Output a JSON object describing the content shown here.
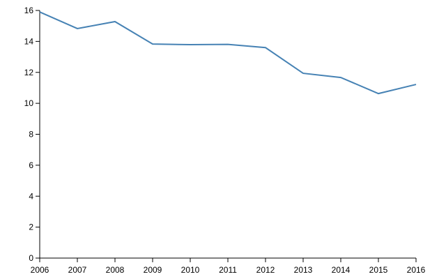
{
  "chart_data": {
    "type": "line",
    "x": [
      2006,
      2007,
      2008,
      2009,
      2010,
      2011,
      2012,
      2013,
      2014,
      2015,
      2016
    ],
    "series": [
      {
        "color": "#4682b4",
        "values": [
          15.9,
          14.83,
          15.28,
          13.83,
          13.79,
          13.81,
          13.6,
          11.94,
          11.67,
          10.63,
          11.22
        ]
      }
    ],
    "xlim": [
      2006,
      2016
    ],
    "xticks": [
      2006,
      2007,
      2008,
      2009,
      2010,
      2011,
      2012,
      2013,
      2014,
      2015,
      2016
    ],
    "ylim": [
      0,
      16
    ],
    "yticks": [
      0,
      2,
      4,
      6,
      8,
      10,
      12,
      14,
      16
    ]
  }
}
